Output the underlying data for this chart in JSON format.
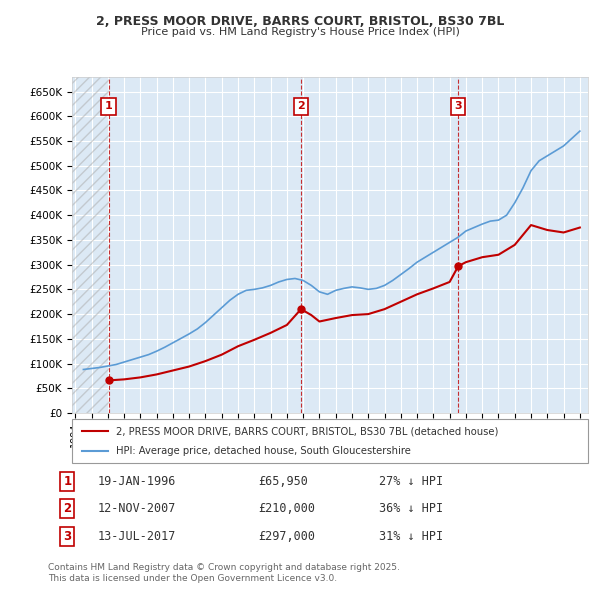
{
  "title1": "2, PRESS MOOR DRIVE, BARRS COURT, BRISTOL, BS30 7BL",
  "title2": "Price paid vs. HM Land Registry's House Price Index (HPI)",
  "sales": [
    {
      "label": 1,
      "date_num": 1996.05,
      "price": 65950,
      "note": "19-JAN-1996",
      "price_str": "£65,950",
      "hpi_note": "27% ↓ HPI"
    },
    {
      "label": 2,
      "date_num": 2007.87,
      "price": 210000,
      "note": "12-NOV-2007",
      "price_str": "£210,000",
      "hpi_note": "36% ↓ HPI"
    },
    {
      "label": 3,
      "date_num": 2017.53,
      "price": 297000,
      "note": "13-JUL-2017",
      "price_str": "£297,000",
      "hpi_note": "31% ↓ HPI"
    }
  ],
  "hpi_dates": [
    1994.5,
    1995.0,
    1995.5,
    1996.0,
    1996.5,
    1997.0,
    1997.5,
    1998.0,
    1998.5,
    1999.0,
    1999.5,
    2000.0,
    2000.5,
    2001.0,
    2001.5,
    2002.0,
    2002.5,
    2003.0,
    2003.5,
    2004.0,
    2004.5,
    2005.0,
    2005.5,
    2006.0,
    2006.5,
    2007.0,
    2007.5,
    2008.0,
    2008.5,
    2009.0,
    2009.5,
    2010.0,
    2010.5,
    2011.0,
    2011.5,
    2012.0,
    2012.5,
    2013.0,
    2013.5,
    2014.0,
    2014.5,
    2015.0,
    2015.5,
    2016.0,
    2016.5,
    2017.0,
    2017.5,
    2018.0,
    2018.5,
    2019.0,
    2019.5,
    2020.0,
    2020.5,
    2021.0,
    2021.5,
    2022.0,
    2022.5,
    2023.0,
    2023.5,
    2024.0,
    2024.5,
    2025.0
  ],
  "hpi_values": [
    88000,
    90000,
    92000,
    95000,
    98000,
    103000,
    108000,
    113000,
    118000,
    125000,
    133000,
    142000,
    151000,
    160000,
    170000,
    183000,
    198000,
    213000,
    228000,
    240000,
    248000,
    250000,
    253000,
    258000,
    265000,
    270000,
    272000,
    268000,
    258000,
    245000,
    240000,
    248000,
    252000,
    255000,
    253000,
    250000,
    252000,
    258000,
    268000,
    280000,
    292000,
    305000,
    315000,
    325000,
    335000,
    345000,
    355000,
    368000,
    375000,
    382000,
    388000,
    390000,
    400000,
    425000,
    455000,
    490000,
    510000,
    520000,
    530000,
    540000,
    555000,
    570000
  ],
  "price_line_dates": [
    1994.5,
    1996.05,
    1997.0,
    1998.0,
    1999.0,
    2000.0,
    2001.0,
    2002.0,
    2003.0,
    2004.0,
    2005.0,
    2006.0,
    2007.0,
    2007.87,
    2008.5,
    2009.0,
    2010.0,
    2011.0,
    2012.0,
    2013.0,
    2014.0,
    2015.0,
    2016.0,
    2017.0,
    2017.53,
    2018.0,
    2019.0,
    2020.0,
    2021.0,
    2022.0,
    2023.0,
    2024.0,
    2025.0
  ],
  "price_line_values": [
    null,
    65950,
    68000,
    72000,
    78000,
    86000,
    94000,
    105000,
    118000,
    135000,
    148000,
    162000,
    178000,
    210000,
    198000,
    185000,
    192000,
    198000,
    200000,
    210000,
    225000,
    240000,
    252000,
    265000,
    297000,
    305000,
    315000,
    320000,
    340000,
    380000,
    370000,
    365000,
    375000
  ],
  "ylabel_ticks": [
    0,
    50000,
    100000,
    150000,
    200000,
    250000,
    300000,
    350000,
    400000,
    450000,
    500000,
    550000,
    600000,
    650000
  ],
  "ylabel_labels": [
    "£0",
    "£50K",
    "£100K",
    "£150K",
    "£200K",
    "£250K",
    "£300K",
    "£350K",
    "£400K",
    "£450K",
    "£500K",
    "£550K",
    "£600K",
    "£650K"
  ],
  "xlim": [
    1993.8,
    2025.5
  ],
  "ylim": [
    0,
    680000
  ],
  "xticks": [
    1994,
    1995,
    1996,
    1997,
    1998,
    1999,
    2000,
    2001,
    2002,
    2003,
    2004,
    2005,
    2006,
    2007,
    2008,
    2009,
    2010,
    2011,
    2012,
    2013,
    2014,
    2015,
    2016,
    2017,
    2018,
    2019,
    2020,
    2021,
    2022,
    2023,
    2024,
    2025
  ],
  "bg_color": "#dce9f5",
  "hpi_color": "#5b9bd5",
  "price_color": "#c00000",
  "marker_box_color": "#c00000",
  "grid_color": "#ffffff",
  "legend_label_property": "2, PRESS MOOR DRIVE, BARRS COURT, BRISTOL, BS30 7BL (detached house)",
  "legend_label_hpi": "HPI: Average price, detached house, South Gloucestershire",
  "footnote": "Contains HM Land Registry data © Crown copyright and database right 2025.\nThis data is licensed under the Open Government Licence v3.0."
}
